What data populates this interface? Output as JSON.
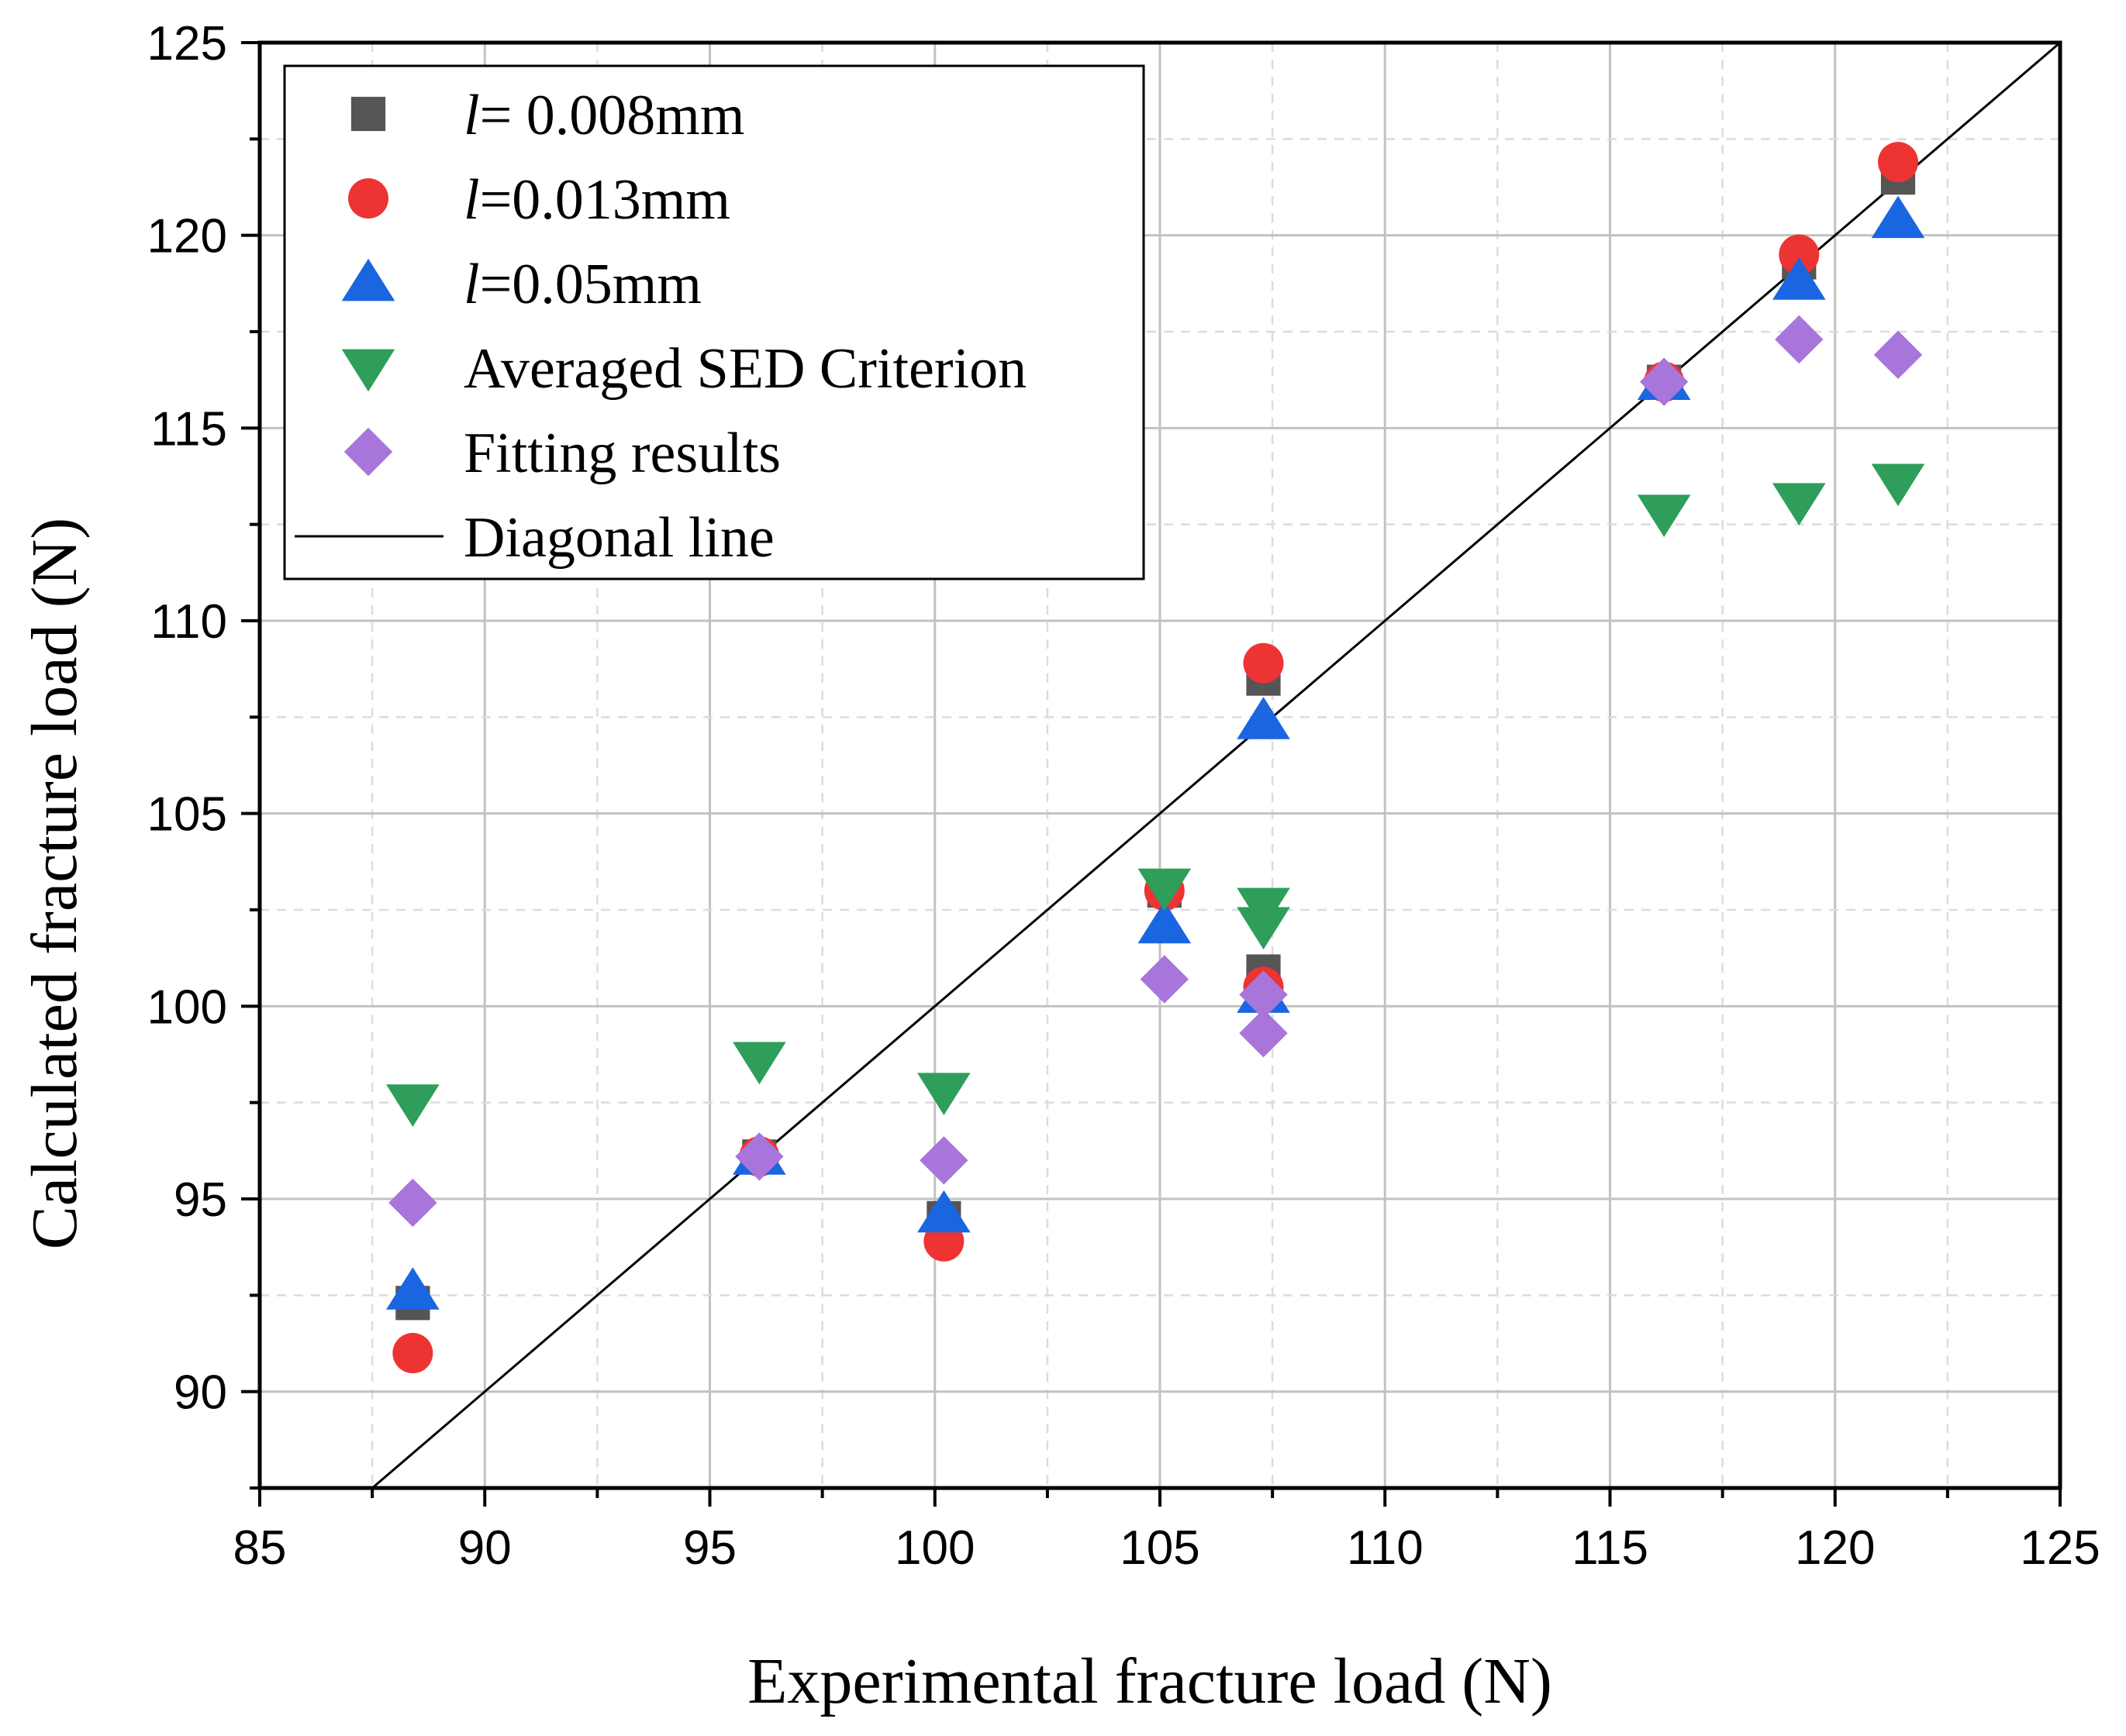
{
  "chart_data": {
    "type": "scatter",
    "xlabel": "Experimental fracture load (N)",
    "ylabel": "Calculated fracture load (N)",
    "xlim": [
      85,
      125
    ],
    "ylim": [
      87.5,
      125
    ],
    "xticks": [
      85,
      90,
      95,
      100,
      105,
      110,
      115,
      120,
      125
    ],
    "yticks": [
      90,
      95,
      100,
      105,
      110,
      115,
      120,
      125
    ],
    "grid": true,
    "legend_position": "top-left",
    "series": [
      {
        "name": "l= 0.008mm",
        "legend_prefix": "l",
        "legend_suffix": "= 0.008mm",
        "marker": "square",
        "color": "#555555",
        "points": [
          [
            88.4,
            92.3
          ],
          [
            96.1,
            96.1
          ],
          [
            100.2,
            94.5
          ],
          [
            105.1,
            103.0
          ],
          [
            107.3,
            108.5
          ],
          [
            107.3,
            100.9
          ],
          [
            116.2,
            116.2
          ],
          [
            119.2,
            119.3
          ],
          [
            121.4,
            121.5
          ]
        ]
      },
      {
        "name": "l=0.013mm",
        "legend_prefix": "l",
        "legend_suffix": "=0.013mm",
        "marker": "circle",
        "color": "#ee3333",
        "points": [
          [
            88.4,
            91.0
          ],
          [
            96.1,
            96.1
          ],
          [
            100.2,
            93.9
          ],
          [
            105.1,
            103.0
          ],
          [
            107.3,
            108.9
          ],
          [
            107.3,
            100.5
          ],
          [
            116.2,
            116.2
          ],
          [
            119.2,
            119.5
          ],
          [
            121.4,
            121.9
          ]
        ]
      },
      {
        "name": "l=0.05mm",
        "legend_prefix": "l",
        "legend_suffix": "=0.05mm",
        "marker": "triangle-up",
        "color": "#1a66e0",
        "points": [
          [
            88.4,
            92.6
          ],
          [
            96.1,
            96.1
          ],
          [
            100.2,
            94.6
          ],
          [
            105.1,
            102.1
          ],
          [
            107.3,
            107.4
          ],
          [
            107.3,
            100.3
          ],
          [
            116.2,
            116.2
          ],
          [
            119.2,
            118.8
          ],
          [
            121.4,
            120.4
          ]
        ]
      },
      {
        "name": "Averaged SED Criterion",
        "marker": "triangle-down",
        "color": "#2e9e5a",
        "points": [
          [
            88.4,
            97.5
          ],
          [
            96.1,
            98.6
          ],
          [
            100.2,
            97.8
          ],
          [
            105.1,
            103.1
          ],
          [
            107.3,
            102.6
          ],
          [
            107.3,
            102.1
          ],
          [
            116.2,
            112.8
          ],
          [
            119.2,
            113.1
          ],
          [
            121.4,
            113.6
          ]
        ]
      },
      {
        "name": "Fitting results",
        "marker": "diamond",
        "color": "#a875db",
        "points": [
          [
            88.4,
            94.9
          ],
          [
            96.1,
            96.1
          ],
          [
            100.2,
            96.0
          ],
          [
            105.1,
            100.7
          ],
          [
            107.3,
            100.3
          ],
          [
            107.3,
            99.3
          ],
          [
            116.2,
            116.2
          ],
          [
            119.2,
            117.3
          ],
          [
            121.4,
            116.9
          ]
        ]
      },
      {
        "name": "Diagonal line",
        "marker": "line",
        "color": "#000000",
        "points": [
          [
            87.5,
            87.5
          ],
          [
            125,
            125
          ]
        ]
      }
    ]
  }
}
